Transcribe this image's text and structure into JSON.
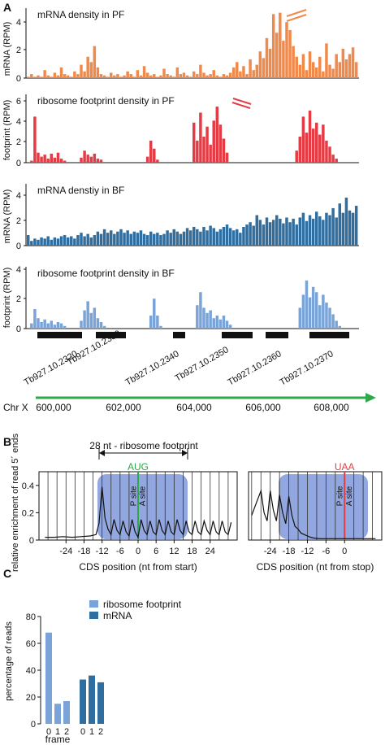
{
  "colors": {
    "pf_mrna": "#f08a4b",
    "pf_fp": "#e53b45",
    "bf_mrna": "#2f6e9f",
    "bf_fp": "#7aa4d8",
    "arrow": "#2fa84a",
    "aug": "#2fa84a",
    "uaa": "#e53b45",
    "shade": "#7f97d9"
  },
  "panels": {
    "A": "A",
    "B": "B",
    "C": "C"
  },
  "chart_data": [
    {
      "type": "bar",
      "title": "mRNA density in PF",
      "ylabel": "mRNA (RPM)",
      "ylim": [
        0,
        5
      ],
      "yticks": [
        "0",
        "2",
        "4"
      ],
      "values": [
        0.1,
        0.3,
        0.1,
        0.2,
        0.1,
        0.6,
        0.2,
        0.1,
        0.4,
        0.2,
        0.8,
        0.3,
        0.2,
        0.1,
        0.5,
        0.3,
        1.0,
        0.5,
        1.6,
        1.2,
        2.4,
        0.8,
        0.3,
        0.2,
        0.1,
        0.4,
        0.2,
        0.3,
        0.1,
        0.2,
        0.5,
        0.3,
        0.1,
        0.6,
        0.2,
        0.9,
        0.4,
        0.2,
        0.3,
        0.1,
        0.2,
        0.7,
        0.3,
        0.2,
        0.1,
        0.8,
        0.3,
        0.4,
        0.2,
        0.1,
        0.5,
        0.3,
        1.0,
        0.4,
        0.2,
        0.3,
        0.6,
        0.2,
        0.1,
        0.3,
        0.2,
        0.4,
        0.8,
        1.2,
        0.5,
        0.9,
        0.3,
        1.4,
        0.6,
        1.0,
        2.0,
        1.5,
        3.0,
        2.2,
        4.8,
        3.4,
        4.9,
        2.8,
        4.2,
        3.6,
        2.4,
        1.6,
        1.0,
        1.8,
        0.6,
        2.0,
        1.2,
        0.8,
        1.6,
        0.5,
        2.6,
        1.0,
        0.7,
        1.8,
        1.2,
        2.2,
        1.4,
        1.8,
        2.3,
        1.2
      ]
    },
    {
      "type": "bar",
      "title": "ribosome footprint density in PF",
      "ylabel": "footprint (RPM)",
      "ylim": [
        0,
        6.5
      ],
      "yticks": [
        "0",
        "2",
        "4",
        "6"
      ],
      "values": [
        0,
        0.2,
        4.6,
        1.0,
        0.6,
        0.8,
        0.4,
        0.9,
        0.5,
        1.0,
        0.4,
        0.2,
        0,
        0,
        0,
        0,
        0.5,
        1.2,
        0.8,
        0.6,
        0.9,
        0.4,
        0.3,
        0,
        0,
        0,
        0,
        0,
        0,
        0,
        0,
        0,
        0,
        0,
        0,
        0,
        0.6,
        2.2,
        1.4,
        0.3,
        0,
        0,
        0,
        0,
        0,
        0,
        0,
        0,
        0,
        0,
        4.0,
        2.2,
        5.0,
        2.6,
        3.6,
        1.8,
        4.2,
        5.6,
        3.8,
        2.4,
        1.0,
        0,
        0,
        0,
        0,
        0,
        0,
        0,
        0,
        0,
        0,
        0,
        0,
        0,
        0,
        0,
        0,
        0,
        0,
        0,
        0,
        1.2,
        2.6,
        4.6,
        3.0,
        5.2,
        3.4,
        4.0,
        2.8,
        3.8,
        2.2,
        1.6,
        0.8,
        0.4,
        0,
        0,
        0,
        0,
        0,
        0
      ]
    },
    {
      "type": "bar",
      "title": "mRNA denstiy in BF",
      "ylabel": "mRNA (RPM)",
      "ylim": [
        0,
        5
      ],
      "yticks": [
        "0",
        "2",
        "4"
      ],
      "values": [
        0.9,
        0.4,
        0.6,
        0.5,
        0.7,
        0.6,
        0.8,
        0.5,
        0.7,
        0.6,
        0.8,
        0.9,
        0.7,
        0.8,
        0.6,
        0.9,
        1.1,
        0.8,
        1.0,
        0.7,
        0.9,
        1.2,
        1.0,
        1.4,
        1.1,
        1.3,
        1.0,
        1.2,
        1.4,
        1.1,
        1.3,
        1.0,
        1.2,
        1.1,
        1.3,
        1.0,
        0.9,
        1.2,
        1.0,
        1.1,
        0.9,
        1.0,
        1.3,
        1.1,
        1.4,
        1.2,
        1.0,
        1.2,
        1.5,
        1.3,
        1.6,
        1.4,
        1.2,
        1.6,
        1.3,
        1.7,
        1.5,
        1.2,
        1.4,
        1.6,
        1.8,
        1.5,
        1.3,
        1.4,
        1.1,
        1.6,
        1.8,
        2.0,
        1.7,
        2.6,
        2.2,
        1.8,
        2.4,
        2.0,
        2.2,
        2.6,
        2.3,
        1.9,
        2.4,
        2.0,
        2.3,
        1.8,
        2.4,
        2.8,
        2.1,
        2.6,
        2.3,
        2.9,
        2.5,
        2.2,
        2.8,
        2.6,
        3.2,
        2.4,
        3.6,
        2.8,
        4.1,
        3.0,
        2.8,
        3.4
      ]
    },
    {
      "type": "bar",
      "title": "ribosome footprint density in BF",
      "ylabel": "footprint (RPM)",
      "ylim": [
        0,
        4.5
      ],
      "yticks": [
        "0",
        "2",
        "4"
      ],
      "values": [
        0,
        0.4,
        1.5,
        0.8,
        0.5,
        0.7,
        0.4,
        0.6,
        0.3,
        0.5,
        0.4,
        0.2,
        0,
        0,
        0,
        0,
        0.6,
        1.4,
        2.1,
        1.2,
        1.6,
        0.8,
        0.5,
        0.2,
        0,
        0,
        0,
        0,
        0,
        0,
        0,
        0,
        0,
        0,
        0,
        0,
        0,
        1.0,
        2.3,
        1.0,
        0.2,
        0,
        0,
        0,
        0,
        0,
        0,
        0,
        0,
        0,
        0,
        1.8,
        2.8,
        1.6,
        1.2,
        1.4,
        0.8,
        1.0,
        0.7,
        1.0,
        0.6,
        0.3,
        0,
        0,
        0,
        0,
        0,
        0,
        0,
        0,
        0,
        0,
        0,
        0,
        0,
        0,
        0,
        0,
        0,
        0,
        0,
        0,
        1.6,
        2.6,
        3.7,
        2.4,
        3.2,
        2.8,
        1.8,
        2.6,
        2.0,
        1.6,
        1.1,
        0.6,
        0.2,
        0,
        0,
        0,
        0,
        0
      ]
    },
    {
      "type": "table",
      "genes": [
        "Tb927.10.2320",
        "Tb927.10.2330",
        "Tb927.10.2340",
        "Tb927.10.2350",
        "Tb927.10.2360",
        "Tb927.10.2370"
      ],
      "chr_label": "Chr X",
      "coordinates": [
        "600,000",
        "602,000",
        "604,000",
        "606,000",
        "608,000"
      ]
    },
    {
      "type": "line",
      "ylabel": "relative enrichment of read 5´ ends",
      "xlabel": "CDS position (nt from start)",
      "xlim": [
        -33,
        33
      ],
      "ylim": [
        0,
        0.5
      ],
      "xticks": [
        "-24",
        "-18",
        "-12",
        "-6",
        "0",
        "6",
        "12",
        "18",
        "24"
      ],
      "yticks": [
        "0",
        "0.2",
        "0.4"
      ],
      "annotation": "28 nt - ribosome footprint",
      "codon_label": "AUG",
      "site_labels": [
        "P site",
        "A site"
      ],
      "x": [
        -31,
        -28,
        -25,
        -22,
        -19,
        -16,
        -14,
        -13,
        -12,
        -11,
        -10,
        -9,
        -8,
        -7,
        -6,
        -5,
        -4,
        -3,
        -2,
        -1,
        0,
        1,
        2,
        3,
        4,
        5,
        6,
        7,
        8,
        9,
        10,
        11,
        12,
        13,
        14,
        15,
        16,
        17,
        18,
        19,
        20,
        21,
        22,
        23,
        24,
        25,
        26,
        27,
        28,
        29,
        30,
        31
      ],
      "values": [
        0.02,
        0.02,
        0.025,
        0.02,
        0.025,
        0.03,
        0.04,
        0.12,
        0.39,
        0.16,
        0.08,
        0.04,
        0.15,
        0.07,
        0.04,
        0.14,
        0.06,
        0.03,
        0.15,
        0.06,
        0.02,
        0.15,
        0.07,
        0.04,
        0.14,
        0.06,
        0.04,
        0.15,
        0.07,
        0.04,
        0.14,
        0.06,
        0.04,
        0.15,
        0.07,
        0.04,
        0.14,
        0.06,
        0.04,
        0.14,
        0.06,
        0.04,
        0.14,
        0.07,
        0.04,
        0.14,
        0.06,
        0.04,
        0.14,
        0.06,
        0.04,
        0.13
      ]
    },
    {
      "type": "line",
      "xlabel": "CDS position (nt from stop)",
      "xlim": [
        -31,
        12
      ],
      "ylim": [
        0,
        0.5
      ],
      "xticks": [
        "-24",
        "-18",
        "-12",
        "-6",
        "0"
      ],
      "codon_label": "UAA",
      "site_labels": [
        "P site",
        "A site"
      ],
      "x": [
        -30,
        -29,
        -28,
        -27,
        -26,
        -25,
        -24,
        -23,
        -22,
        -21,
        -20,
        -19,
        -18,
        -17,
        -16,
        -15,
        -14,
        -13,
        -12,
        -11,
        -10,
        -8,
        -6,
        -4,
        -2,
        0,
        2,
        4,
        6,
        8,
        10
      ],
      "values": [
        0.18,
        0.24,
        0.3,
        0.36,
        0.2,
        0.14,
        0.36,
        0.22,
        0.14,
        0.33,
        0.2,
        0.12,
        0.32,
        0.18,
        0.1,
        0.08,
        0.05,
        0.04,
        0.03,
        0.02,
        0.015,
        0.01,
        0.01,
        0.01,
        0.01,
        0.01,
        0.01,
        0.01,
        0.01,
        0.01,
        0.01
      ]
    },
    {
      "type": "bar",
      "ylabel": "percentage of reads",
      "xlabel": "frame",
      "ylim": [
        0,
        80
      ],
      "yticks": [
        "0",
        "20",
        "40",
        "60",
        "80"
      ],
      "categories": [
        "0",
        "1",
        "2"
      ],
      "series": [
        {
          "name": "ribosome footprint",
          "values": [
            68,
            15,
            17
          ]
        },
        {
          "name": "mRNA",
          "values": [
            33,
            36,
            31
          ]
        }
      ]
    }
  ]
}
